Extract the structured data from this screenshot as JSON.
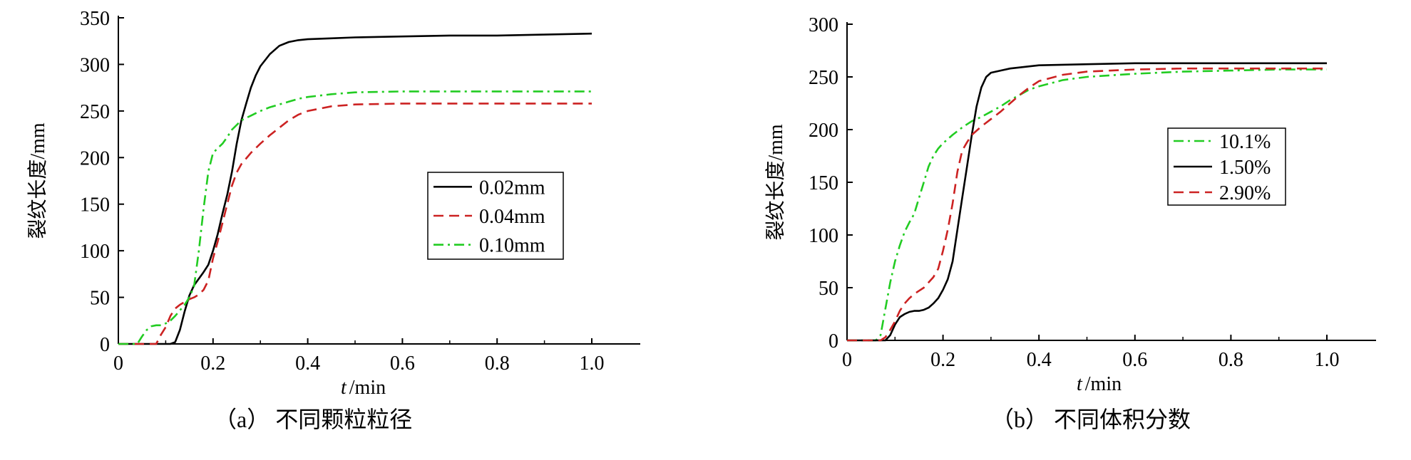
{
  "chart_data": [
    {
      "type": "line",
      "caption": "（a）  不同颗粒粒径",
      "xlabel_var": "t",
      "xlabel_unit": "/min",
      "ylabel": "裂纹长度/mm",
      "xlim": [
        0,
        1.1
      ],
      "ylim": [
        0,
        350
      ],
      "xticks": [
        0,
        0.2,
        0.4,
        0.6,
        0.8,
        1.0
      ],
      "xtick_labels": [
        "0",
        "0.2",
        "0.4",
        "0.6",
        "0.8",
        "1.0"
      ],
      "yticks": [
        0,
        50,
        100,
        150,
        200,
        250,
        300,
        350
      ],
      "ytick_labels": [
        "0",
        "50",
        "100",
        "150",
        "200",
        "250",
        "300",
        "350"
      ],
      "grid": false,
      "legend_position": "right-middle",
      "series": [
        {
          "name": "0.02mm",
          "color": "#000000",
          "dash": "solid",
          "points": [
            [
              0,
              0
            ],
            [
              0.11,
              0
            ],
            [
              0.12,
              2
            ],
            [
              0.13,
              15
            ],
            [
              0.14,
              35
            ],
            [
              0.15,
              52
            ],
            [
              0.16,
              63
            ],
            [
              0.17,
              70
            ],
            [
              0.18,
              77
            ],
            [
              0.19,
              85
            ],
            [
              0.2,
              100
            ],
            [
              0.21,
              118
            ],
            [
              0.22,
              140
            ],
            [
              0.23,
              160
            ],
            [
              0.24,
              185
            ],
            [
              0.25,
              215
            ],
            [
              0.26,
              240
            ],
            [
              0.27,
              258
            ],
            [
              0.28,
              275
            ],
            [
              0.29,
              288
            ],
            [
              0.3,
              298
            ],
            [
              0.32,
              311
            ],
            [
              0.34,
              320
            ],
            [
              0.36,
              324
            ],
            [
              0.38,
              326
            ],
            [
              0.4,
              327
            ],
            [
              0.45,
              328
            ],
            [
              0.5,
              329
            ],
            [
              0.6,
              330
            ],
            [
              0.7,
              331
            ],
            [
              0.8,
              331
            ],
            [
              0.9,
              332
            ],
            [
              1.0,
              333
            ]
          ]
        },
        {
          "name": "0.04mm",
          "color": "#cc2222",
          "dash": "dashed",
          "points": [
            [
              0,
              0
            ],
            [
              0.08,
              0
            ],
            [
              0.09,
              10
            ],
            [
              0.1,
              18
            ],
            [
              0.11,
              30
            ],
            [
              0.12,
              38
            ],
            [
              0.13,
              42
            ],
            [
              0.14,
              45
            ],
            [
              0.15,
              48
            ],
            [
              0.16,
              50
            ],
            [
              0.17,
              53
            ],
            [
              0.18,
              58
            ],
            [
              0.19,
              68
            ],
            [
              0.2,
              92
            ],
            [
              0.21,
              110
            ],
            [
              0.22,
              130
            ],
            [
              0.23,
              150
            ],
            [
              0.24,
              170
            ],
            [
              0.25,
              184
            ],
            [
              0.26,
              193
            ],
            [
              0.28,
              205
            ],
            [
              0.3,
              215
            ],
            [
              0.32,
              224
            ],
            [
              0.34,
              232
            ],
            [
              0.36,
              240
            ],
            [
              0.38,
              246
            ],
            [
              0.4,
              250
            ],
            [
              0.45,
              255
            ],
            [
              0.5,
              257
            ],
            [
              0.6,
              258
            ],
            [
              0.7,
              258
            ],
            [
              0.8,
              258
            ],
            [
              0.9,
              258
            ],
            [
              1.0,
              258
            ]
          ]
        },
        {
          "name": "0.10mm",
          "color": "#22cc22",
          "dash": "dashdot",
          "points": [
            [
              0,
              0
            ],
            [
              0.04,
              0
            ],
            [
              0.05,
              8
            ],
            [
              0.06,
              15
            ],
            [
              0.07,
              19
            ],
            [
              0.08,
              20
            ],
            [
              0.09,
              20
            ],
            [
              0.1,
              22
            ],
            [
              0.11,
              25
            ],
            [
              0.12,
              30
            ],
            [
              0.13,
              36
            ],
            [
              0.14,
              42
            ],
            [
              0.15,
              50
            ],
            [
              0.16,
              62
            ],
            [
              0.17,
              100
            ],
            [
              0.18,
              145
            ],
            [
              0.19,
              185
            ],
            [
              0.2,
              205
            ],
            [
              0.21,
              210
            ],
            [
              0.22,
              215
            ],
            [
              0.23,
              222
            ],
            [
              0.24,
              230
            ],
            [
              0.25,
              235
            ],
            [
              0.26,
              240
            ],
            [
              0.28,
              245
            ],
            [
              0.3,
              250
            ],
            [
              0.32,
              254
            ],
            [
              0.34,
              257
            ],
            [
              0.36,
              260
            ],
            [
              0.38,
              263
            ],
            [
              0.4,
              265
            ],
            [
              0.45,
              268
            ],
            [
              0.5,
              270
            ],
            [
              0.6,
              271
            ],
            [
              0.7,
              271
            ],
            [
              0.8,
              271
            ],
            [
              0.9,
              271
            ],
            [
              1.0,
              271
            ]
          ]
        }
      ]
    },
    {
      "type": "line",
      "caption": "（b）  不同体积分数",
      "xlabel_var": "t",
      "xlabel_unit": "/min",
      "ylabel": "裂纹长度/mm",
      "xlim": [
        0,
        1.1
      ],
      "ylim": [
        0,
        300
      ],
      "xticks": [
        0,
        0.2,
        0.4,
        0.6,
        0.8,
        1.0
      ],
      "xtick_labels": [
        "0",
        "0.2",
        "0.4",
        "0.6",
        "0.8",
        "1.0"
      ],
      "yticks": [
        0,
        50,
        100,
        150,
        200,
        250,
        300
      ],
      "ytick_labels": [
        "0",
        "50",
        "100",
        "150",
        "200",
        "250",
        "300"
      ],
      "grid": false,
      "legend_position": "right-upper",
      "series": [
        {
          "name": "10.1%",
          "color": "#22cc22",
          "dash": "dashdot",
          "points": [
            [
              0,
              0
            ],
            [
              0.06,
              0
            ],
            [
              0.07,
              5
            ],
            [
              0.08,
              30
            ],
            [
              0.09,
              55
            ],
            [
              0.1,
              75
            ],
            [
              0.11,
              90
            ],
            [
              0.12,
              103
            ],
            [
              0.13,
              112
            ],
            [
              0.14,
              120
            ],
            [
              0.15,
              135
            ],
            [
              0.16,
              150
            ],
            [
              0.17,
              165
            ],
            [
              0.18,
              175
            ],
            [
              0.19,
              182
            ],
            [
              0.2,
              187
            ],
            [
              0.22,
              195
            ],
            [
              0.24,
              202
            ],
            [
              0.26,
              208
            ],
            [
              0.28,
              212
            ],
            [
              0.3,
              217
            ],
            [
              0.32,
              222
            ],
            [
              0.34,
              228
            ],
            [
              0.36,
              233
            ],
            [
              0.38,
              238
            ],
            [
              0.4,
              241
            ],
            [
              0.45,
              247
            ],
            [
              0.5,
              250
            ],
            [
              0.6,
              253
            ],
            [
              0.7,
              255
            ],
            [
              0.8,
              256
            ],
            [
              0.9,
              257
            ],
            [
              1.0,
              257
            ]
          ]
        },
        {
          "name": "1.50%",
          "color": "#000000",
          "dash": "solid",
          "points": [
            [
              0,
              0
            ],
            [
              0.08,
              0
            ],
            [
              0.09,
              5
            ],
            [
              0.1,
              15
            ],
            [
              0.11,
              22
            ],
            [
              0.12,
              25
            ],
            [
              0.13,
              27
            ],
            [
              0.14,
              28
            ],
            [
              0.15,
              28
            ],
            [
              0.16,
              29
            ],
            [
              0.17,
              31
            ],
            [
              0.18,
              35
            ],
            [
              0.19,
              40
            ],
            [
              0.2,
              48
            ],
            [
              0.21,
              58
            ],
            [
              0.22,
              75
            ],
            [
              0.23,
              105
            ],
            [
              0.24,
              135
            ],
            [
              0.25,
              165
            ],
            [
              0.26,
              195
            ],
            [
              0.27,
              222
            ],
            [
              0.28,
              240
            ],
            [
              0.29,
              250
            ],
            [
              0.3,
              254
            ],
            [
              0.32,
              256
            ],
            [
              0.34,
              258
            ],
            [
              0.36,
              259
            ],
            [
              0.38,
              260
            ],
            [
              0.4,
              261
            ],
            [
              0.5,
              262
            ],
            [
              0.6,
              263
            ],
            [
              0.7,
              263
            ],
            [
              0.8,
              263
            ],
            [
              0.9,
              263
            ],
            [
              1.0,
              263
            ]
          ]
        },
        {
          "name": "2.90%",
          "color": "#cc2222",
          "dash": "dashed",
          "points": [
            [
              0,
              0
            ],
            [
              0.07,
              0
            ],
            [
              0.08,
              3
            ],
            [
              0.09,
              10
            ],
            [
              0.1,
              18
            ],
            [
              0.11,
              28
            ],
            [
              0.12,
              35
            ],
            [
              0.13,
              40
            ],
            [
              0.14,
              44
            ],
            [
              0.15,
              47
            ],
            [
              0.16,
              50
            ],
            [
              0.17,
              55
            ],
            [
              0.18,
              60
            ],
            [
              0.19,
              68
            ],
            [
              0.2,
              85
            ],
            [
              0.21,
              105
            ],
            [
              0.22,
              130
            ],
            [
              0.23,
              160
            ],
            [
              0.24,
              180
            ],
            [
              0.25,
              188
            ],
            [
              0.26,
              195
            ],
            [
              0.28,
              203
            ],
            [
              0.3,
              210
            ],
            [
              0.32,
              217
            ],
            [
              0.34,
              225
            ],
            [
              0.36,
              233
            ],
            [
              0.38,
              240
            ],
            [
              0.4,
              246
            ],
            [
              0.45,
              252
            ],
            [
              0.5,
              255
            ],
            [
              0.6,
              257
            ],
            [
              0.7,
              258
            ],
            [
              0.8,
              258
            ],
            [
              0.9,
              258
            ],
            [
              1.0,
              258
            ]
          ]
        }
      ]
    }
  ]
}
